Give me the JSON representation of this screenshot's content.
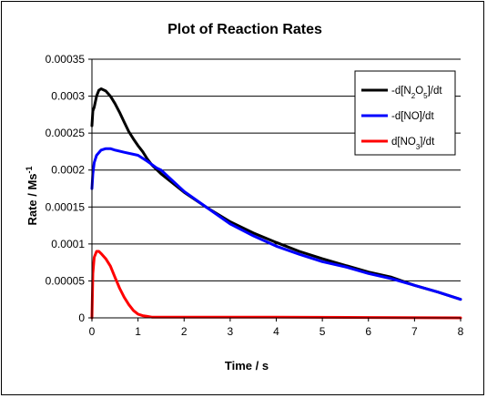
{
  "chart_data": {
    "type": "line",
    "title": "Plot of Reaction Rates",
    "xlabel": "Time / s",
    "ylabel": "Rate / Ms",
    "ylabel_sup": "-1",
    "xlim": [
      0,
      8
    ],
    "ylim": [
      0,
      0.00035
    ],
    "x_ticks": [
      "0",
      "1",
      "2",
      "3",
      "4",
      "5",
      "6",
      "7",
      "8"
    ],
    "y_ticks": [
      "0",
      "0.00005",
      "0.0001",
      "0.00015",
      "0.0002",
      "0.00025",
      "0.0003",
      "0.00035"
    ],
    "grid": "horizontal",
    "legend_position": "top-right",
    "series": [
      {
        "name": "-d[N2O5]/dt",
        "legend": {
          "pre": "-d[N",
          "sub1": "2",
          "mid": "O",
          "sub2": "5",
          "post": "]/dt"
        },
        "color": "#000000",
        "points": [
          [
            0,
            0.00026
          ],
          [
            0.02,
            0.00028
          ],
          [
            0.05,
            0.000285
          ],
          [
            0.1,
            0.0003
          ],
          [
            0.15,
            0.000308
          ],
          [
            0.2,
            0.00031
          ],
          [
            0.3,
            0.000307
          ],
          [
            0.4,
            0.0003
          ],
          [
            0.5,
            0.00029
          ],
          [
            0.6,
            0.000278
          ],
          [
            0.7,
            0.000265
          ],
          [
            0.8,
            0.000252
          ],
          [
            0.9,
            0.000242
          ],
          [
            1,
            0.000233
          ],
          [
            1.1,
            0.000225
          ],
          [
            1.2,
            0.000215
          ],
          [
            1.3,
            0.000207
          ],
          [
            1.5,
            0.000195
          ],
          [
            2,
            0.00017
          ],
          [
            2.5,
            0.000149
          ],
          [
            3,
            0.00013
          ],
          [
            3.5,
            0.000115
          ],
          [
            4,
            0.000102
          ],
          [
            4.5,
            9e-05
          ],
          [
            5,
            8e-05
          ],
          [
            5.5,
            7.1e-05
          ],
          [
            6,
            6.2e-05
          ],
          [
            6.5,
            5.5e-05
          ],
          [
            7,
            4.4e-05
          ],
          [
            7.5,
            3.5e-05
          ],
          [
            8,
            2.5e-05
          ]
        ]
      },
      {
        "name": "-d[NO]/dt",
        "legend": {
          "pre": "-d[NO]/dt"
        },
        "color": "#0000ff",
        "points": [
          [
            0,
            0.000175
          ],
          [
            0.02,
            0.000195
          ],
          [
            0.05,
            0.00021
          ],
          [
            0.1,
            0.00022
          ],
          [
            0.2,
            0.000227
          ],
          [
            0.3,
            0.000229
          ],
          [
            0.4,
            0.000229
          ],
          [
            0.5,
            0.000227
          ],
          [
            0.7,
            0.000224
          ],
          [
            1,
            0.00022
          ],
          [
            1.2,
            0.000212
          ],
          [
            1.4,
            0.000203
          ],
          [
            1.5,
            0.0002
          ],
          [
            2,
            0.000171
          ],
          [
            2.5,
            0.000149
          ],
          [
            3,
            0.000127
          ],
          [
            3.5,
            0.000111
          ],
          [
            4,
            9.7e-05
          ],
          [
            4.5,
            8.6e-05
          ],
          [
            5,
            7.6e-05
          ],
          [
            5.5,
            6.9e-05
          ],
          [
            6,
            6e-05
          ],
          [
            6.5,
            5.3e-05
          ],
          [
            7,
            4.4e-05
          ],
          [
            7.5,
            3.5e-05
          ],
          [
            8,
            2.5e-05
          ]
        ]
      },
      {
        "name": "d[NO3]/dt",
        "legend": {
          "pre": "d[NO",
          "sub1": "3",
          "post": "]/dt"
        },
        "color": "#ff0000",
        "points": [
          [
            0,
            0
          ],
          [
            0.02,
            6e-05
          ],
          [
            0.05,
            8.2e-05
          ],
          [
            0.1,
            9e-05
          ],
          [
            0.15,
            9e-05
          ],
          [
            0.2,
            8.7e-05
          ],
          [
            0.3,
            8e-05
          ],
          [
            0.4,
            7e-05
          ],
          [
            0.5,
            5.5e-05
          ],
          [
            0.6,
            4e-05
          ],
          [
            0.7,
            2.8e-05
          ],
          [
            0.8,
            1.8e-05
          ],
          [
            0.9,
            1e-05
          ],
          [
            1,
            5e-06
          ],
          [
            1.1,
            3e-06
          ],
          [
            1.2,
            2e-06
          ],
          [
            1.3,
            1e-06
          ],
          [
            2,
            1e-06
          ],
          [
            4,
            1e-06
          ],
          [
            6,
            5e-07
          ],
          [
            8,
            0
          ]
        ]
      }
    ]
  }
}
